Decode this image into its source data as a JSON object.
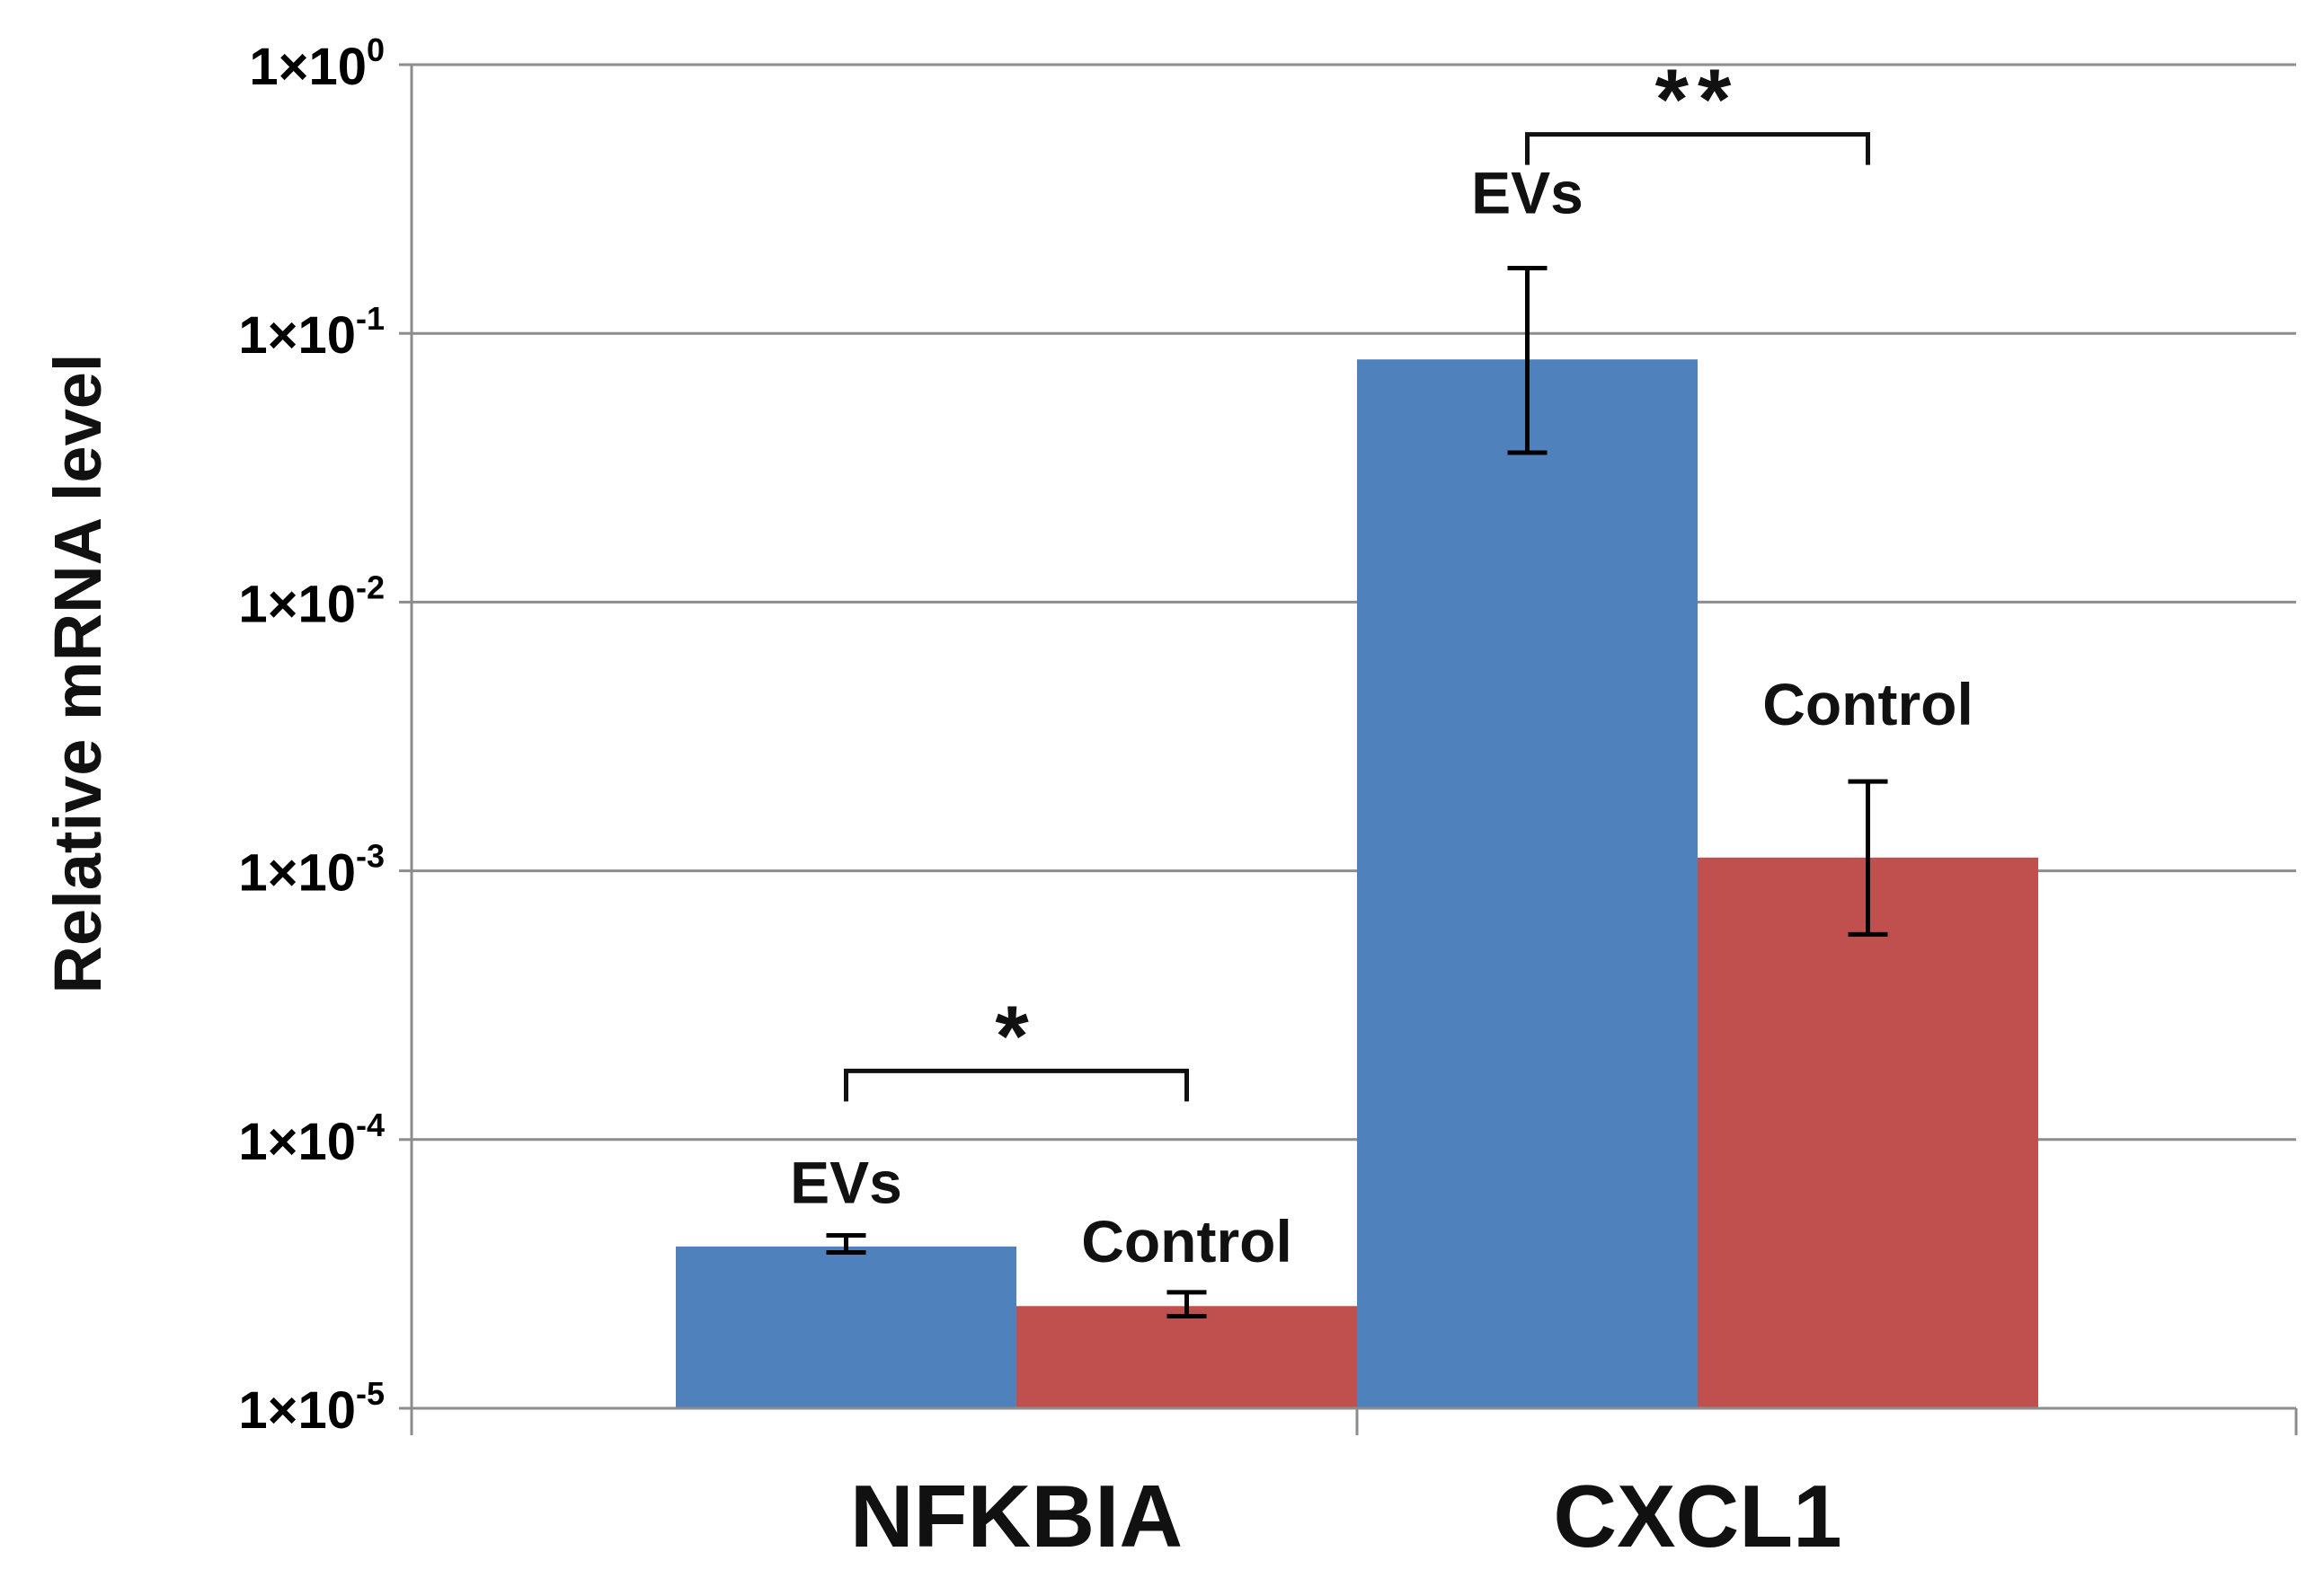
{
  "chart_data": {
    "type": "bar",
    "yscale": "log",
    "ylabel": "Relative mRNA level",
    "xlabel": "",
    "ylim": [
      1e-05,
      1
    ],
    "y_ticks": [
      {
        "value": 1e-05,
        "base": "1×10",
        "exp": "-5"
      },
      {
        "value": 0.0001,
        "base": "1×10",
        "exp": "-4"
      },
      {
        "value": 0.001,
        "base": "1×10",
        "exp": "-3"
      },
      {
        "value": 0.01,
        "base": "1×10",
        "exp": "-2"
      },
      {
        "value": 0.1,
        "base": "1×10",
        "exp": "-1"
      },
      {
        "value": 1,
        "base": "1×10",
        "exp": "0"
      }
    ],
    "grid": true,
    "categories": [
      "NFKBIA",
      "CXCL1"
    ],
    "series": [
      {
        "name": "EVs",
        "color": "#4f81bd",
        "values": [
          4e-05,
          0.08
        ],
        "err_low": [
          3.8e-05,
          0.036
        ],
        "err_high": [
          4.4e-05,
          0.175
        ]
      },
      {
        "name": "Control",
        "color": "#c0504d",
        "values": [
          2.4e-05,
          0.00112
        ],
        "err_low": [
          2.2e-05,
          0.00058
        ],
        "err_high": [
          2.7e-05,
          0.00215
        ]
      }
    ],
    "bar_labels": [
      {
        "text": "EVs",
        "category": 0,
        "series": 0,
        "value": 5.8e-05
      },
      {
        "text": "Control",
        "category": 0,
        "series": 1,
        "value": 3.5e-05
      },
      {
        "text": "EVs",
        "category": 1,
        "series": 0,
        "value": 0.28
      },
      {
        "text": "Control",
        "category": 1,
        "series": 1,
        "value": 0.0035
      }
    ],
    "significance": [
      {
        "category": 0,
        "label": "*",
        "value": 0.00018
      },
      {
        "category": 1,
        "label": "**",
        "value": 0.55
      }
    ]
  }
}
